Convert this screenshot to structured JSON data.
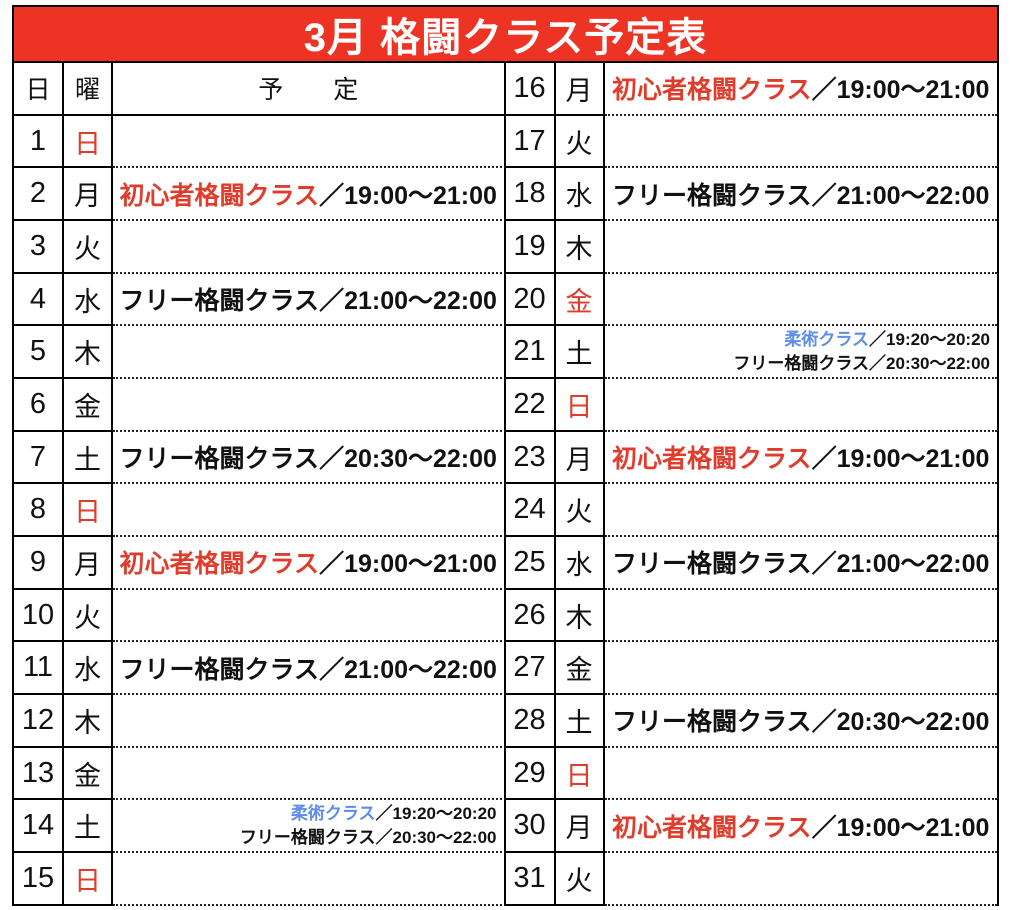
{
  "title": "3月 格闘クラス予定表",
  "columns": {
    "day": "日",
    "weekday": "曜",
    "schedule": "予　　定"
  },
  "colors": {
    "banner": "#ed3323",
    "red": "#e03c2b",
    "blue": "#5e8ce8",
    "ink": "#111111"
  },
  "days": [
    {
      "day": 1,
      "weekday": "日",
      "holiday": true,
      "layout": "center",
      "classes": []
    },
    {
      "day": 2,
      "weekday": "月",
      "holiday": false,
      "layout": "center",
      "classes": [
        {
          "name": "初心者格闘クラス",
          "color": "red",
          "time": "／19:00〜21:00"
        }
      ]
    },
    {
      "day": 3,
      "weekday": "火",
      "holiday": false,
      "layout": "center",
      "classes": []
    },
    {
      "day": 4,
      "weekday": "水",
      "holiday": false,
      "layout": "center",
      "classes": [
        {
          "name": "フリー格闘クラス",
          "color": "black",
          "time": "／21:00〜22:00"
        }
      ]
    },
    {
      "day": 5,
      "weekday": "木",
      "holiday": false,
      "layout": "center",
      "classes": []
    },
    {
      "day": 6,
      "weekday": "金",
      "holiday": false,
      "layout": "center",
      "classes": []
    },
    {
      "day": 7,
      "weekday": "土",
      "holiday": false,
      "layout": "center",
      "classes": [
        {
          "name": "フリー格闘クラス",
          "color": "black",
          "time": "／20:30〜22:00"
        }
      ]
    },
    {
      "day": 8,
      "weekday": "日",
      "holiday": true,
      "layout": "center",
      "classes": []
    },
    {
      "day": 9,
      "weekday": "月",
      "holiday": false,
      "layout": "center",
      "classes": [
        {
          "name": "初心者格闘クラス",
          "color": "red",
          "time": "／19:00〜21:00"
        }
      ]
    },
    {
      "day": 10,
      "weekday": "火",
      "holiday": false,
      "layout": "center",
      "classes": []
    },
    {
      "day": 11,
      "weekday": "水",
      "holiday": false,
      "layout": "center",
      "classes": [
        {
          "name": "フリー格闘クラス",
          "color": "black",
          "time": "／21:00〜22:00"
        }
      ]
    },
    {
      "day": 12,
      "weekday": "木",
      "holiday": false,
      "layout": "center",
      "classes": []
    },
    {
      "day": 13,
      "weekday": "金",
      "holiday": false,
      "layout": "center",
      "classes": []
    },
    {
      "day": 14,
      "weekday": "土",
      "holiday": false,
      "layout": "stacked-right",
      "classes": [
        {
          "name": "柔術クラス",
          "color": "blue",
          "time": "／19:20〜20:20"
        },
        {
          "name": "フリー格闘クラス",
          "color": "black",
          "time": "／20:30〜22:00"
        }
      ]
    },
    {
      "day": 15,
      "weekday": "日",
      "holiday": true,
      "layout": "center",
      "classes": []
    },
    {
      "day": 16,
      "weekday": "月",
      "holiday": false,
      "layout": "center",
      "classes": [
        {
          "name": "初心者格闘クラス",
          "color": "red",
          "time": "／19:00〜21:00"
        }
      ]
    },
    {
      "day": 17,
      "weekday": "火",
      "holiday": false,
      "layout": "center",
      "classes": []
    },
    {
      "day": 18,
      "weekday": "水",
      "holiday": false,
      "layout": "center",
      "classes": [
        {
          "name": "フリー格闘クラス",
          "color": "black",
          "time": "／21:00〜22:00"
        }
      ]
    },
    {
      "day": 19,
      "weekday": "木",
      "holiday": false,
      "layout": "center",
      "classes": []
    },
    {
      "day": 20,
      "weekday": "金",
      "holiday": true,
      "layout": "center",
      "classes": []
    },
    {
      "day": 21,
      "weekday": "土",
      "holiday": false,
      "layout": "stacked-right",
      "classes": [
        {
          "name": "柔術クラス",
          "color": "blue",
          "time": "／19:20〜20:20"
        },
        {
          "name": "フリー格闘クラス",
          "color": "black",
          "time": "／20:30〜22:00"
        }
      ]
    },
    {
      "day": 22,
      "weekday": "日",
      "holiday": true,
      "layout": "center",
      "classes": []
    },
    {
      "day": 23,
      "weekday": "月",
      "holiday": false,
      "layout": "center",
      "classes": [
        {
          "name": "初心者格闘クラス",
          "color": "red",
          "time": "／19:00〜21:00"
        }
      ]
    },
    {
      "day": 24,
      "weekday": "火",
      "holiday": false,
      "layout": "center",
      "classes": []
    },
    {
      "day": 25,
      "weekday": "水",
      "holiday": false,
      "layout": "center",
      "classes": [
        {
          "name": "フリー格闘クラス",
          "color": "black",
          "time": "／21:00〜22:00"
        }
      ]
    },
    {
      "day": 26,
      "weekday": "木",
      "holiday": false,
      "layout": "center",
      "classes": []
    },
    {
      "day": 27,
      "weekday": "金",
      "holiday": false,
      "layout": "center",
      "classes": []
    },
    {
      "day": 28,
      "weekday": "土",
      "holiday": false,
      "layout": "center",
      "classes": [
        {
          "name": "フリー格闘クラス",
          "color": "black",
          "time": "／20:30〜22:00"
        }
      ]
    },
    {
      "day": 29,
      "weekday": "日",
      "holiday": true,
      "layout": "center",
      "classes": []
    },
    {
      "day": 30,
      "weekday": "月",
      "holiday": false,
      "layout": "center",
      "classes": [
        {
          "name": "初心者格闘クラス",
          "color": "red",
          "time": "／19:00〜21:00"
        }
      ]
    },
    {
      "day": 31,
      "weekday": "火",
      "holiday": false,
      "layout": "center",
      "classes": []
    }
  ]
}
